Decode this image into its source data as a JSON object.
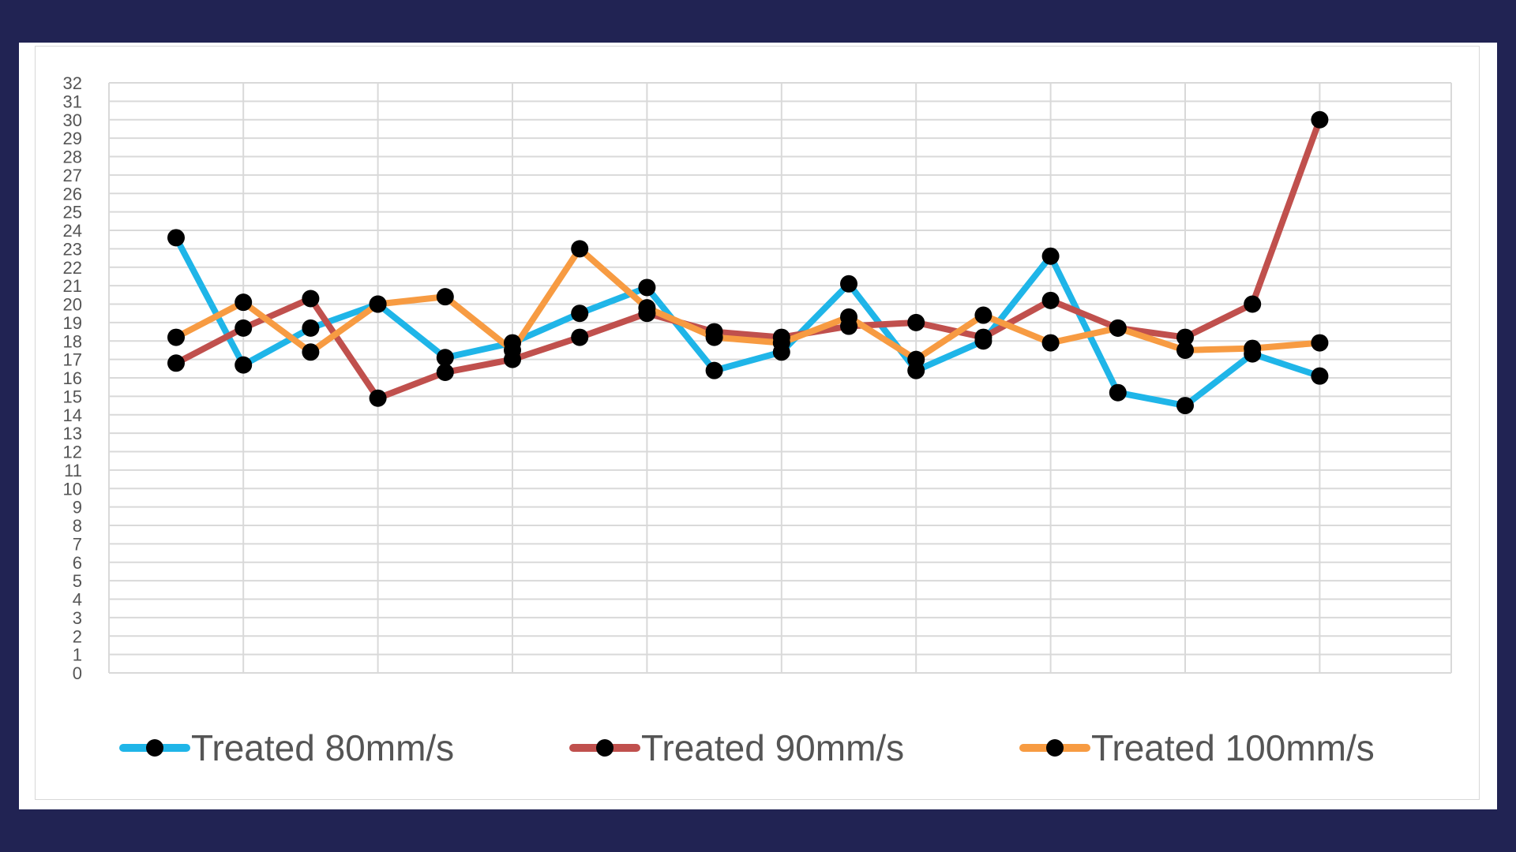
{
  "chart_data": {
    "type": "line",
    "title": "",
    "xlabel": "",
    "ylabel": "",
    "x": [
      1,
      2,
      3,
      4,
      5,
      6,
      7,
      8,
      9,
      10,
      11,
      12,
      13,
      14,
      15,
      16,
      17,
      18
    ],
    "ylim": [
      0,
      32
    ],
    "yticks": [
      0,
      1,
      2,
      3,
      4,
      5,
      6,
      7,
      8,
      9,
      10,
      11,
      12,
      13,
      14,
      15,
      16,
      17,
      18,
      19,
      20,
      21,
      22,
      23,
      24,
      25,
      26,
      27,
      28,
      29,
      30,
      31,
      32
    ],
    "grid": true,
    "legend_position": "bottom",
    "series": [
      {
        "name": "Treated 80mm/s",
        "color": "#1fb5e8",
        "values": [
          23.6,
          16.7,
          18.7,
          20.0,
          17.1,
          17.9,
          19.5,
          20.9,
          16.4,
          17.4,
          21.1,
          16.4,
          18.0,
          22.6,
          15.2,
          14.5,
          17.3,
          16.1
        ]
      },
      {
        "name": "Treated 90mm/s",
        "color": "#c0504d",
        "values": [
          16.8,
          18.7,
          20.3,
          14.9,
          16.3,
          17.0,
          18.2,
          19.5,
          18.5,
          18.2,
          18.8,
          19.0,
          18.2,
          20.2,
          18.7,
          18.2,
          20.0,
          30.0
        ]
      },
      {
        "name": "Treated 100mm/s",
        "color": "#f79b42",
        "values": [
          18.2,
          20.1,
          17.4,
          20.0,
          20.4,
          17.5,
          23.0,
          19.8,
          18.2,
          17.9,
          19.3,
          17.0,
          19.4,
          17.9,
          18.7,
          17.5,
          17.6,
          17.9
        ]
      }
    ],
    "marker_color": "#000000"
  }
}
